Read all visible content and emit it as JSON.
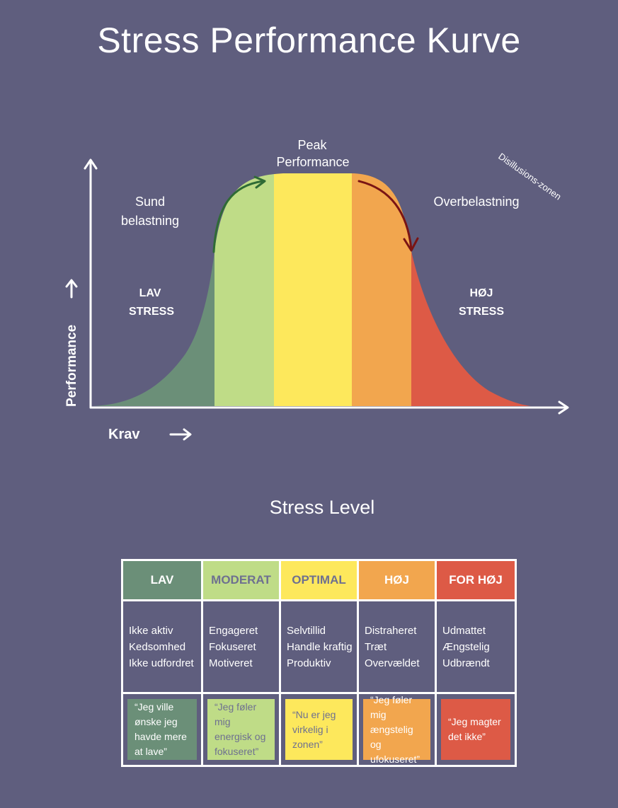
{
  "title": "Stress Performance Kurve",
  "colors": {
    "background": "#5f5e7e",
    "low": "#6b8f78",
    "moderate": "#bfdc87",
    "optimal": "#fde85c",
    "high": "#f2a64e",
    "too_high": "#dd5a46",
    "arrow_up": "#2f6b35",
    "arrow_down": "#7a1414"
  },
  "chart": {
    "y_axis_label": "Performance",
    "x_axis_label": "Krav",
    "peak_label_line1": "Peak",
    "peak_label_line2": "Performance",
    "healthy_label_line1": "Sund",
    "healthy_label_line2": "belastning",
    "overload_label": "Overbelastning",
    "disillusion_label": "Disillusions-zonen",
    "low_stress_line1": "LAV",
    "low_stress_line2": "STRESS",
    "high_stress_line1": "HØJ",
    "high_stress_line2": "STRESS"
  },
  "subtitle": "Stress Level",
  "levels": [
    {
      "header": "LAV",
      "header_color": "#ffffff",
      "bg": "#6b8f78",
      "quote_color": "#ffffff",
      "descriptors": [
        "Ikke aktiv",
        "Kedsomhed",
        "Ikke udfordret"
      ],
      "quote": "“Jeg ville ønske jeg havde mere at lave”"
    },
    {
      "header": "MODERAT",
      "header_color": "#6e7090",
      "bg": "#bfdc87",
      "quote_color": "#6e7090",
      "descriptors": [
        "Engageret",
        "Fokuseret",
        "Motiveret"
      ],
      "quote": "“Jeg føler mig energisk og fokuseret”"
    },
    {
      "header": "OPTIMAL",
      "header_color": "#6e7090",
      "bg": "#fde85c",
      "quote_color": "#6e7090",
      "descriptors": [
        "Selvtillid",
        "Handle kraftig",
        "Produktiv"
      ],
      "quote": "“Nu er jeg virkelig i zonen”"
    },
    {
      "header": "HØJ",
      "header_color": "#ffffff",
      "bg": "#f2a64e",
      "quote_color": "#ffffff",
      "descriptors": [
        "Distraheret",
        "Træt",
        "Overvældet"
      ],
      "quote": "“Jeg føler mig ængstelig og ufokuseret”"
    },
    {
      "header": "FOR HØJ",
      "header_color": "#ffffff",
      "bg": "#dd5a46",
      "quote_color": "#ffffff",
      "descriptors": [
        "Udmattet",
        "Ængstelig",
        "Udbrændt"
      ],
      "quote": "“Jeg magter det ikke”"
    }
  ]
}
